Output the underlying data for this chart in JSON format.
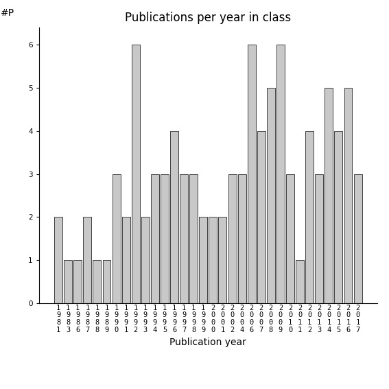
{
  "title": "Publications per year in class",
  "xlabel": "Publication year",
  "ylabel": "#P",
  "years": [
    "1981",
    "1983",
    "1986",
    "1987",
    "1988",
    "1989",
    "1990",
    "1991",
    "1992",
    "1993",
    "1994",
    "1995",
    "1996",
    "1997",
    "1998",
    "1999",
    "2000",
    "2001",
    "2002",
    "2004",
    "2006",
    "2007",
    "2008",
    "2009",
    "2010",
    "2011",
    "2012",
    "2013",
    "2014",
    "2015",
    "2016",
    "2017"
  ],
  "values": [
    2,
    1,
    1,
    2,
    1,
    1,
    3,
    2,
    6,
    2,
    3,
    3,
    4,
    3,
    3,
    2,
    2,
    2,
    3,
    3,
    6,
    4,
    5,
    6,
    3,
    1,
    4,
    3,
    5,
    4,
    5,
    3
  ],
  "bar_color": "#c8c8c8",
  "bar_edge_color": "#000000",
  "ylim": [
    0,
    6.4
  ],
  "yticks": [
    0,
    1,
    2,
    3,
    4,
    5,
    6
  ],
  "title_fontsize": 12,
  "label_fontsize": 10,
  "tick_fontsize": 7.5,
  "background_color": "#ffffff"
}
